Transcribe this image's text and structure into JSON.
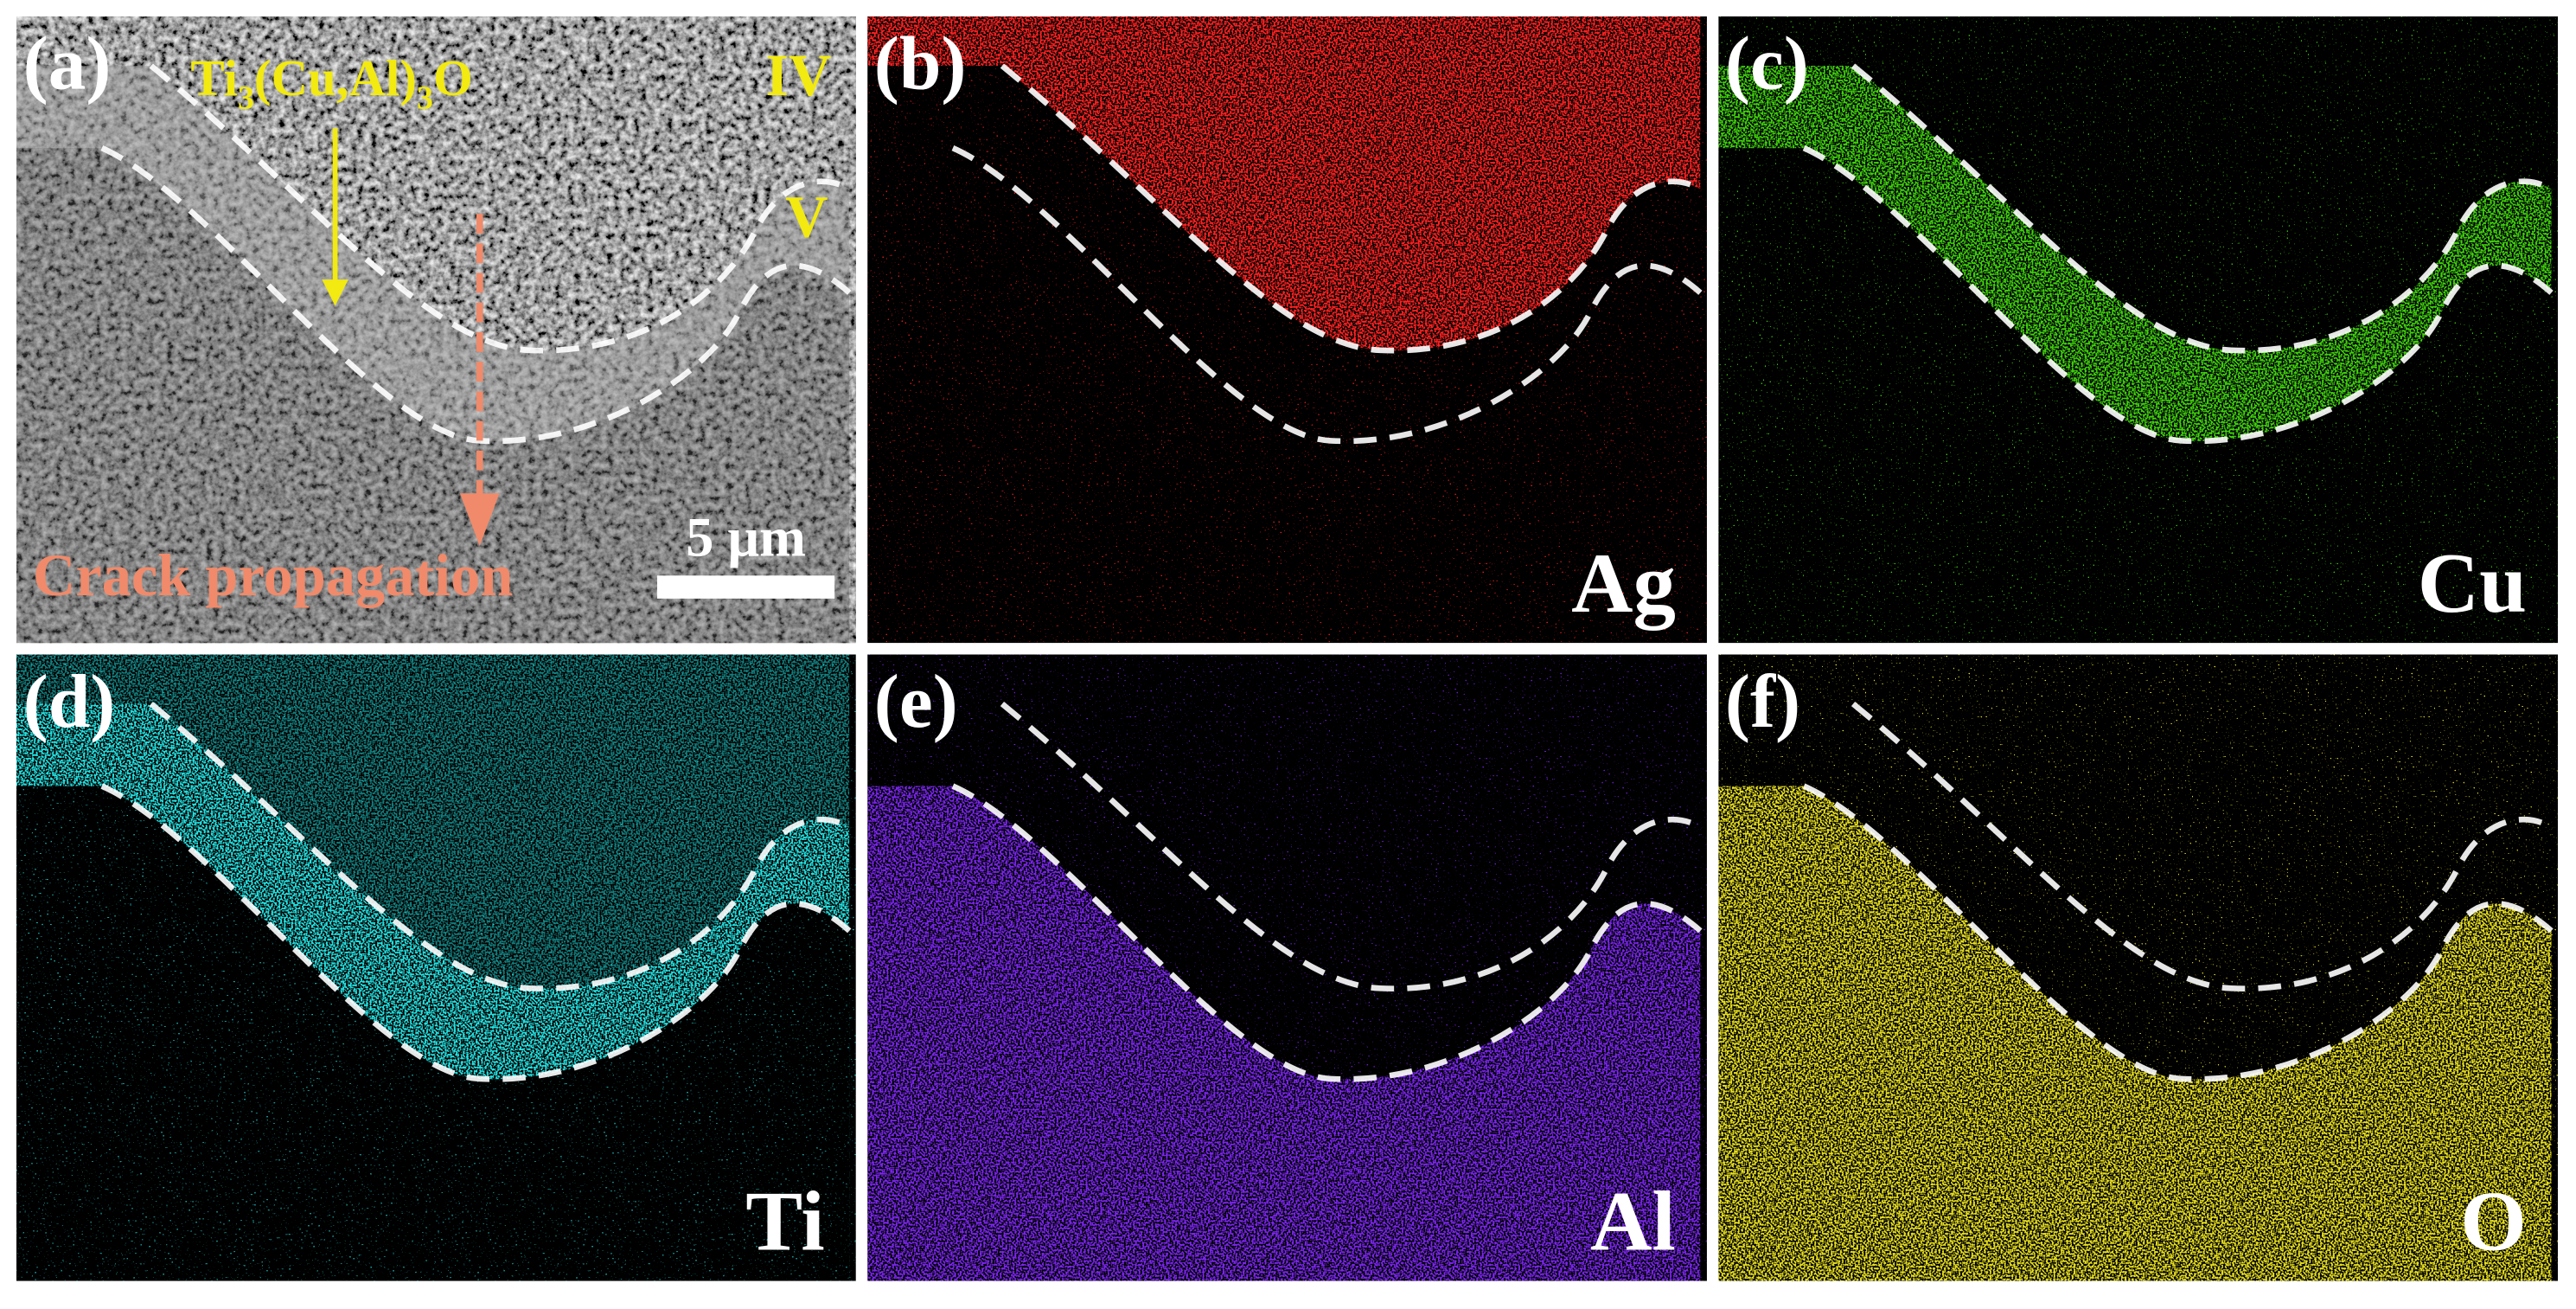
{
  "panels": [
    {
      "label": "(a)"
    },
    {
      "label": "(b)",
      "element": "Ag"
    },
    {
      "label": "(c)",
      "element": "Cu"
    },
    {
      "label": "(d)",
      "element": "Ti"
    },
    {
      "label": "(e)",
      "element": "Al"
    },
    {
      "label": "(f)",
      "element": "O"
    }
  ],
  "annotations": {
    "phase": [
      "Ti",
      "3",
      "(Cu,Al)",
      "3",
      "O"
    ],
    "zones": [
      "IV",
      "V"
    ],
    "scale_bar": "5 μm",
    "arrow_label": "Crack propagation"
  }
}
